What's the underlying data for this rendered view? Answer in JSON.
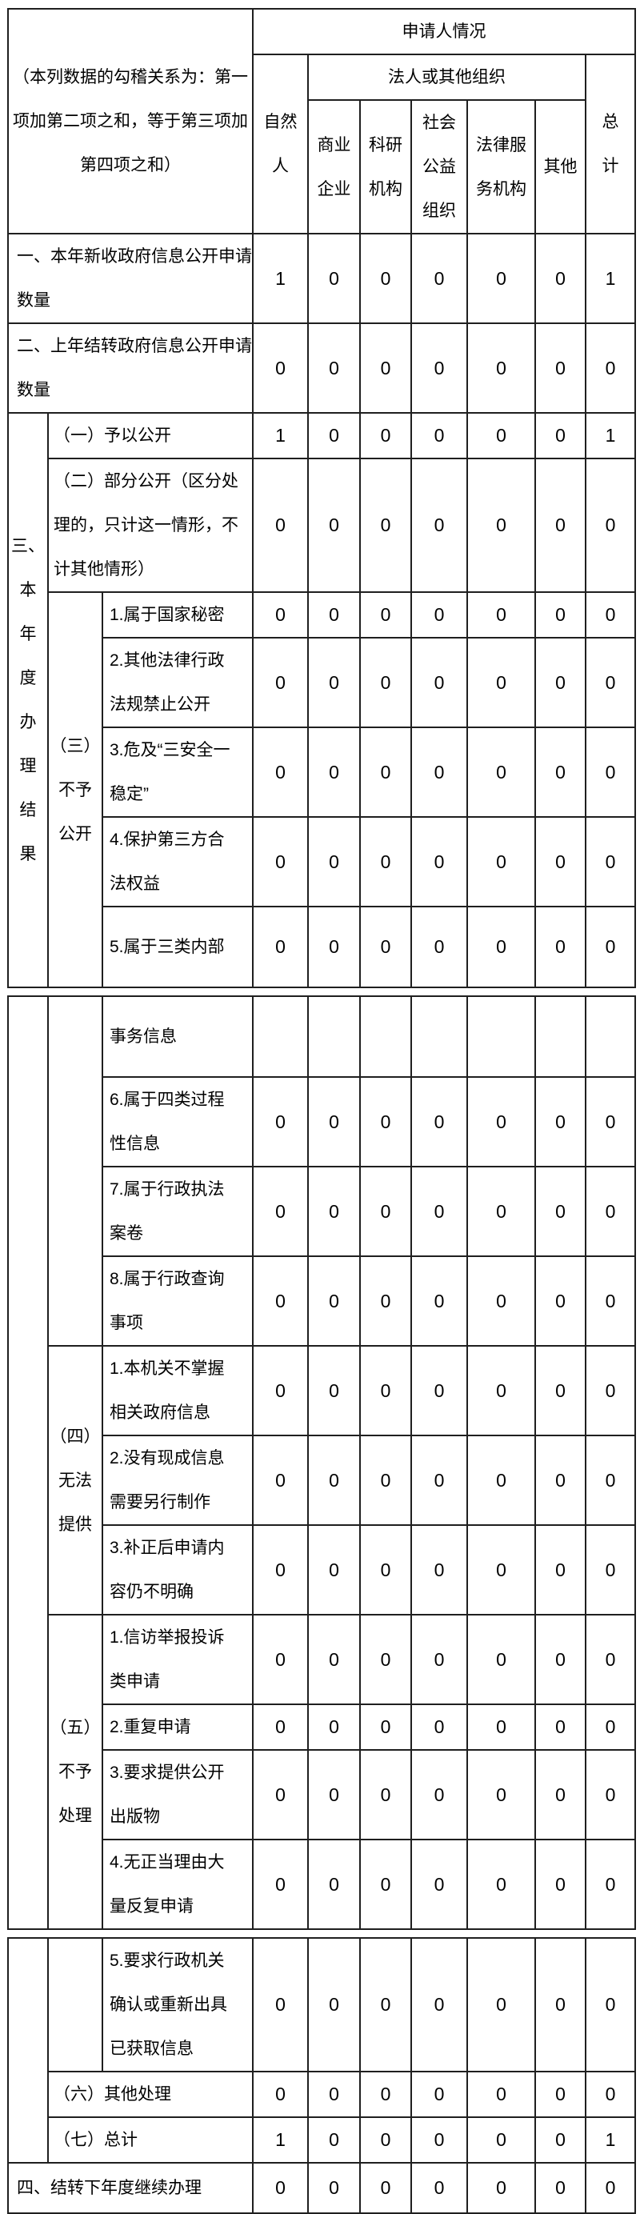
{
  "header": {
    "note_lines": [
      "（本列数据的勾稽关系为：第一",
      "项加第二项之和，等于第三项加",
      "第四项之和）"
    ],
    "applicant_title": "申请人情况",
    "legal_org_title": "法人或其他组织",
    "natural_person_lines": [
      "自然",
      "人"
    ],
    "total_lines": [
      "总",
      "计"
    ],
    "org_types": [
      [
        "商业",
        "企业"
      ],
      [
        "科研",
        "机构"
      ],
      [
        "社会",
        "公益",
        "组织"
      ],
      [
        "法律服",
        "务机构"
      ],
      [
        "其他"
      ]
    ]
  },
  "section3": {
    "label_lines": [
      "三、",
      "本",
      "年",
      "度",
      "办",
      "理",
      "结",
      "果"
    ]
  },
  "groups": {
    "denied_lines": [
      "（三）",
      "不予",
      "公开"
    ],
    "unable_lines": [
      "（四）",
      "无法",
      "提供"
    ],
    "nohandle_lines": [
      "（五）",
      "不予",
      "处理"
    ]
  },
  "rows": [
    {
      "label_lines": [
        "一、本年新收政府信息公开申请",
        "数量"
      ],
      "values": [
        "1",
        "0",
        "0",
        "0",
        "0",
        "0",
        "1"
      ]
    },
    {
      "label_lines": [
        "二、上年结转政府信息公开申请",
        "数量"
      ],
      "values": [
        "0",
        "0",
        "0",
        "0",
        "0",
        "0",
        "0"
      ]
    },
    {
      "label_lines": [
        "（一）予以公开"
      ],
      "values": [
        "1",
        "0",
        "0",
        "0",
        "0",
        "0",
        "1"
      ]
    },
    {
      "label_lines": [
        "（二）部分公开（区分处",
        "理的，只计这一情形，不",
        "计其他情形）"
      ],
      "values": [
        "0",
        "0",
        "0",
        "0",
        "0",
        "0",
        "0"
      ]
    },
    {
      "label_lines": [
        "1.属于国家秘密"
      ],
      "values": [
        "0",
        "0",
        "0",
        "0",
        "0",
        "0",
        "0"
      ]
    },
    {
      "label_lines": [
        "2.其他法律行政",
        "法规禁止公开"
      ],
      "values": [
        "0",
        "0",
        "0",
        "0",
        "0",
        "0",
        "0"
      ]
    },
    {
      "label_lines": [
        "3.危及“三安全一",
        "稳定”"
      ],
      "values": [
        "0",
        "0",
        "0",
        "0",
        "0",
        "0",
        "0"
      ]
    },
    {
      "label_lines": [
        "4.保护第三方合",
        "法权益"
      ],
      "values": [
        "0",
        "0",
        "0",
        "0",
        "0",
        "0",
        "0"
      ]
    },
    {
      "label_lines": [
        "5.属于三类内部"
      ],
      "values": [
        "0",
        "0",
        "0",
        "0",
        "0",
        "0",
        "0"
      ]
    },
    {
      "label_lines": [
        "事务信息"
      ],
      "values": [
        "",
        "",
        "",
        "",
        "",
        "",
        ""
      ]
    },
    {
      "label_lines": [
        "6.属于四类过程",
        "性信息"
      ],
      "values": [
        "0",
        "0",
        "0",
        "0",
        "0",
        "0",
        "0"
      ]
    },
    {
      "label_lines": [
        "7.属于行政执法",
        "案卷"
      ],
      "values": [
        "0",
        "0",
        "0",
        "0",
        "0",
        "0",
        "0"
      ]
    },
    {
      "label_lines": [
        "8.属于行政查询",
        "事项"
      ],
      "values": [
        "0",
        "0",
        "0",
        "0",
        "0",
        "0",
        "0"
      ]
    },
    {
      "label_lines": [
        "1.本机关不掌握",
        "相关政府信息"
      ],
      "values": [
        "0",
        "0",
        "0",
        "0",
        "0",
        "0",
        "0"
      ]
    },
    {
      "label_lines": [
        "2.没有现成信息",
        "需要另行制作"
      ],
      "values": [
        "0",
        "0",
        "0",
        "0",
        "0",
        "0",
        "0"
      ]
    },
    {
      "label_lines": [
        "3.补正后申请内",
        "容仍不明确"
      ],
      "values": [
        "0",
        "0",
        "0",
        "0",
        "0",
        "0",
        "0"
      ]
    },
    {
      "label_lines": [
        "1.信访举报投诉",
        "类申请"
      ],
      "values": [
        "0",
        "0",
        "0",
        "0",
        "0",
        "0",
        "0"
      ]
    },
    {
      "label_lines": [
        "2.重复申请"
      ],
      "values": [
        "0",
        "0",
        "0",
        "0",
        "0",
        "0",
        "0"
      ]
    },
    {
      "label_lines": [
        "3.要求提供公开",
        "出版物"
      ],
      "values": [
        "0",
        "0",
        "0",
        "0",
        "0",
        "0",
        "0"
      ]
    },
    {
      "label_lines": [
        "4.无正当理由大",
        "量反复申请"
      ],
      "values": [
        "0",
        "0",
        "0",
        "0",
        "0",
        "0",
        "0"
      ]
    },
    {
      "label_lines": [
        "5.要求行政机关",
        "确认或重新出具",
        "已获取信息"
      ],
      "values": [
        "0",
        "0",
        "0",
        "0",
        "0",
        "0",
        "0"
      ]
    },
    {
      "label_lines": [
        "（六）其他处理"
      ],
      "values": [
        "0",
        "0",
        "0",
        "0",
        "0",
        "0",
        "0"
      ]
    },
    {
      "label_lines": [
        "（七）总计"
      ],
      "values": [
        "1",
        "0",
        "0",
        "0",
        "0",
        "0",
        "1"
      ]
    },
    {
      "label_lines": [
        "四、结转下年度继续办理"
      ],
      "values": [
        "0",
        "0",
        "0",
        "0",
        "0",
        "0",
        "0"
      ]
    }
  ]
}
